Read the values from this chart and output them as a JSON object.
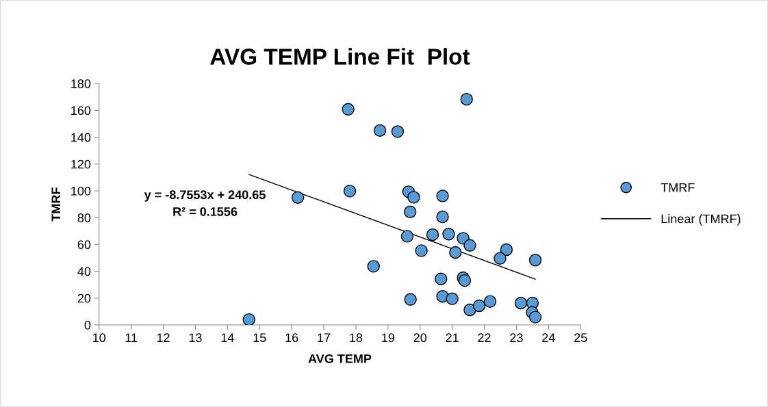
{
  "chart_data": {
    "type": "scatter",
    "title": "AVG TEMP Line Fit  Plot",
    "xlabel": "AVG TEMP",
    "ylabel": "TMRF",
    "xlim": [
      10,
      25
    ],
    "xticks": [
      10,
      11,
      12,
      13,
      14,
      15,
      16,
      17,
      18,
      19,
      20,
      21,
      22,
      23,
      24,
      25
    ],
    "ylim": [
      0,
      180
    ],
    "yticks": [
      0,
      20,
      40,
      60,
      80,
      100,
      120,
      140,
      160,
      180
    ],
    "grid": false,
    "legend": "right",
    "annotations": [
      "y = -8.7553x + 240.65\nR² = 0.1556"
    ],
    "series": [
      {
        "name": "TMRF",
        "marker": "circle",
        "color": "#5b9bd5",
        "x": [
          21.45,
          17.76,
          18.75,
          19.3,
          16.19,
          17.81,
          19.64,
          19.8,
          20.7,
          19.69,
          20.7,
          19.6,
          20.39,
          20.89,
          21.34,
          21.55,
          20.04,
          21.1,
          22.69,
          22.49,
          23.59,
          18.55,
          20.65,
          21.34,
          21.39,
          19.7,
          20.7,
          21.0,
          21.55,
          21.84,
          22.18,
          23.14,
          23.5,
          23.49,
          23.59,
          14.67
        ],
        "values": [
          168.3,
          160.8,
          145,
          144.2,
          95,
          99.8,
          99.3,
          95.2,
          96.2,
          84.3,
          80.6,
          66.1,
          67.3,
          67.7,
          64.6,
          59.3,
          55.4,
          54.1,
          56.1,
          49.6,
          48.3,
          43.7,
          34.3,
          35.2,
          33.1,
          19.0,
          21.3,
          19.5,
          11.2,
          14.3,
          17.5,
          16.3,
          16.3,
          9.3,
          5.8,
          4
        ]
      },
      {
        "name": "Linear (TMRF)",
        "type": "line",
        "line_style": "solid",
        "marker": "none",
        "color": "#000000",
        "x": [
          14.67,
          23.59
        ],
        "values": [
          112.2,
          34.1
        ]
      }
    ]
  }
}
